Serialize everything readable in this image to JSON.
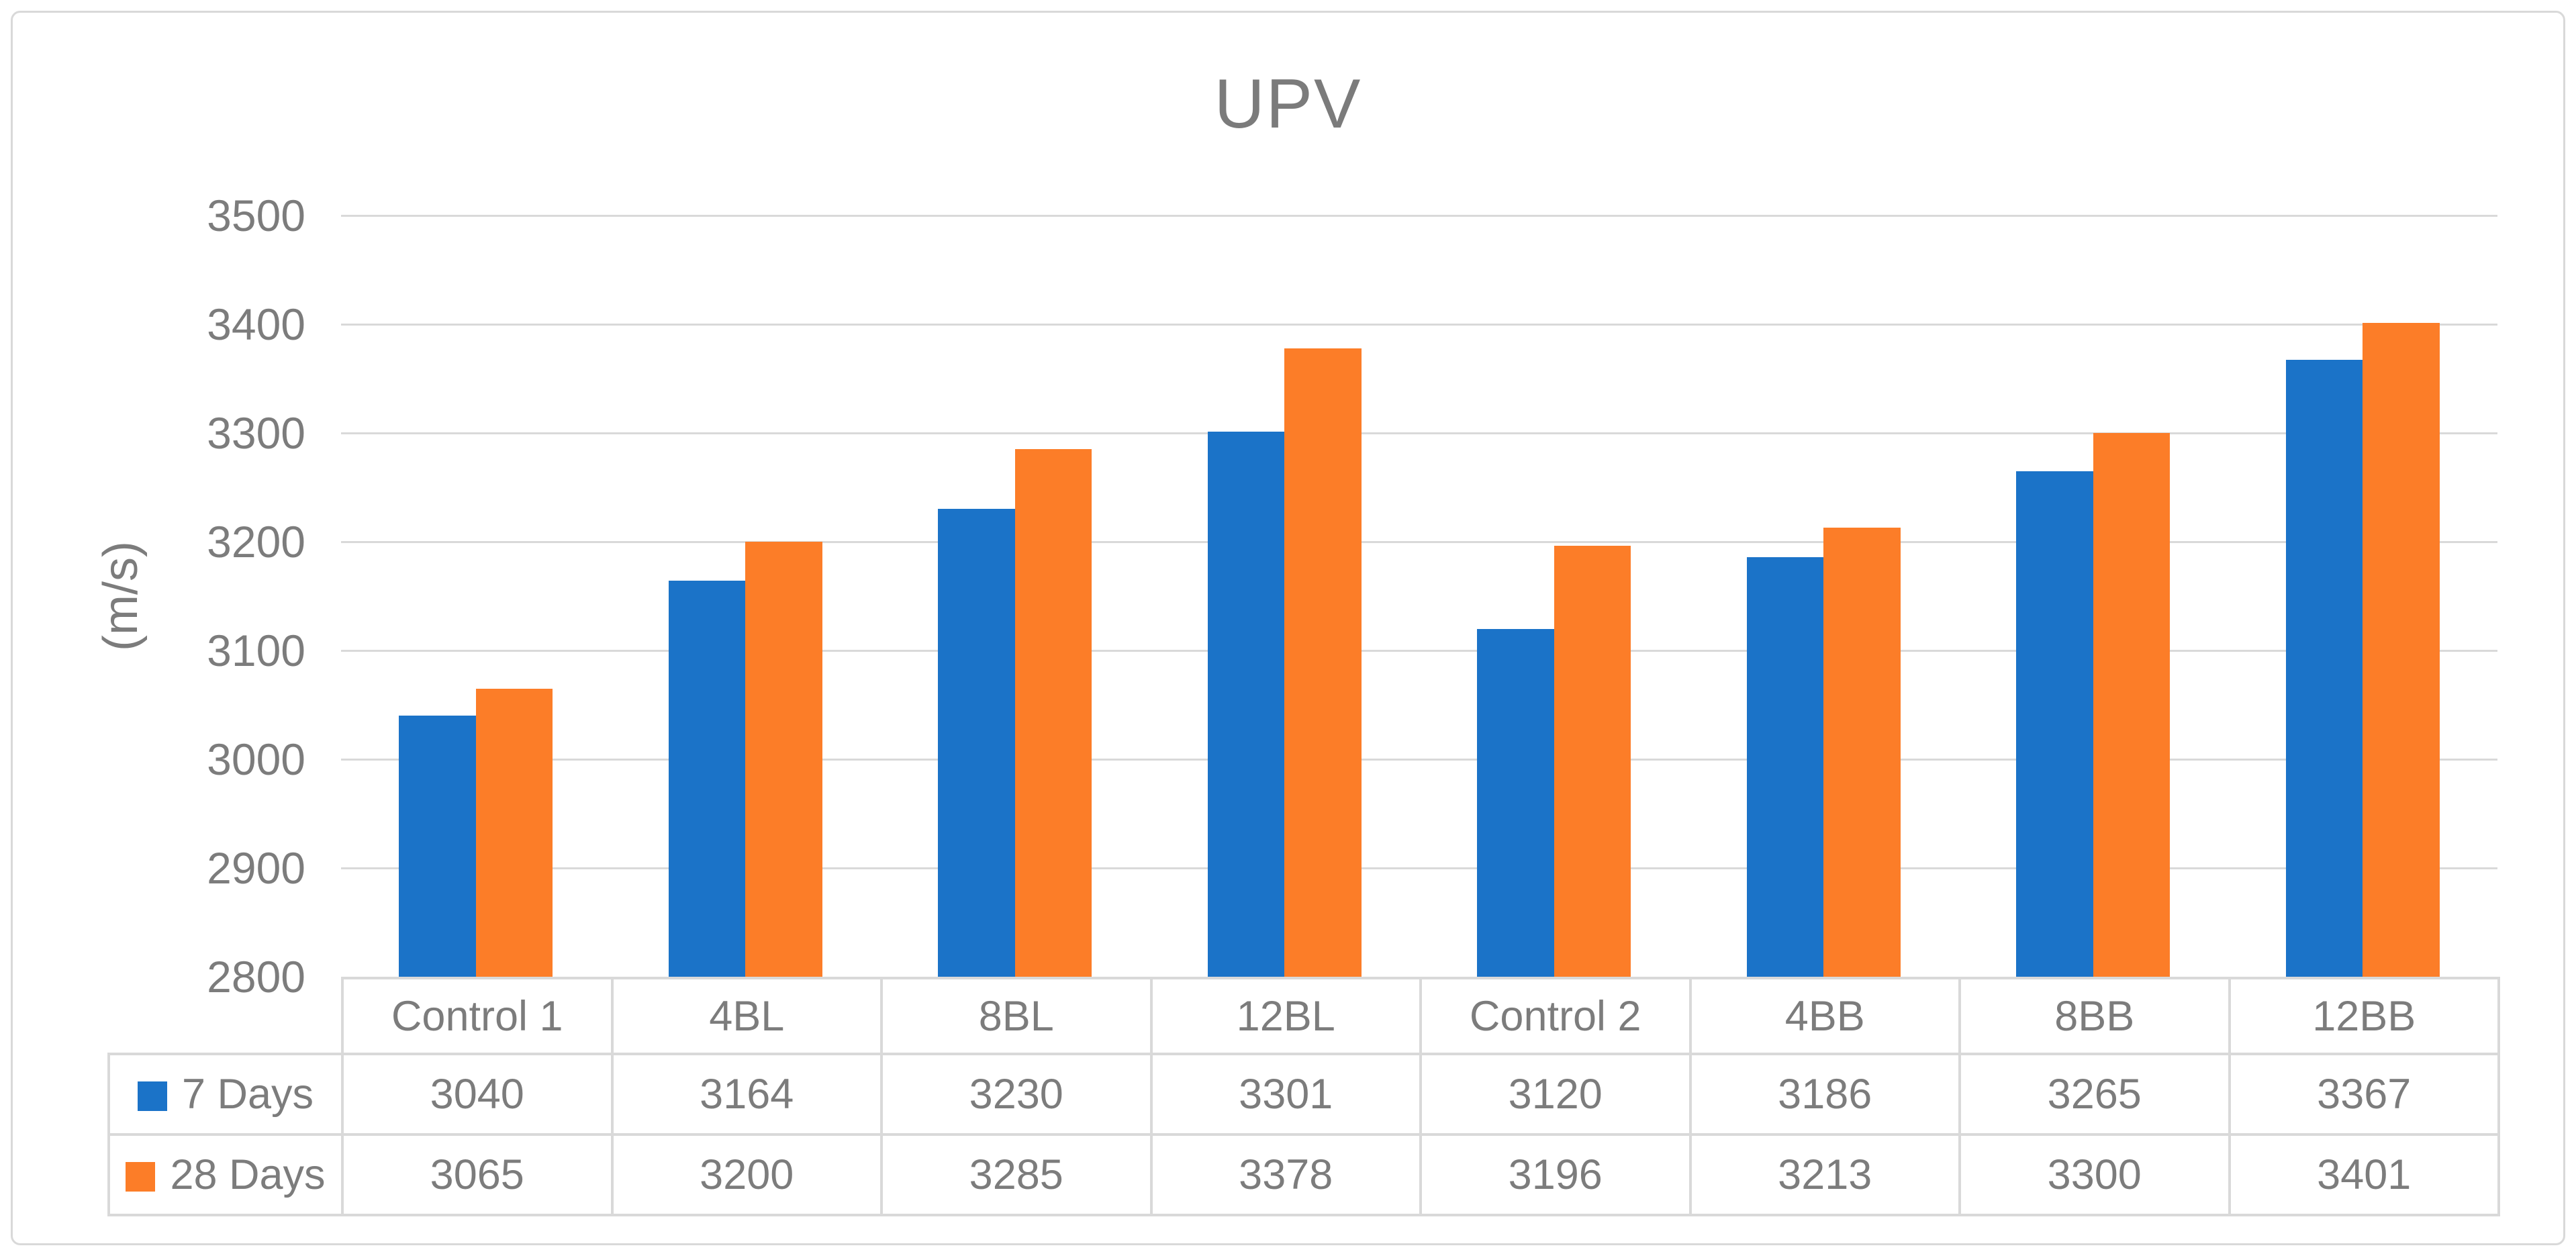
{
  "chart_data": {
    "type": "bar",
    "title": "UPV",
    "ylabel": "(m/s)",
    "categories": [
      "Control 1",
      "4BL",
      "8BL",
      "12BL",
      "Control 2",
      "4BB",
      "8BB",
      "12BB"
    ],
    "series": [
      {
        "name": "7 Days",
        "color": "#1B73C8",
        "values": [
          3040,
          3164,
          3230,
          3301,
          3120,
          3186,
          3265,
          3367
        ]
      },
      {
        "name": "28 Days",
        "color": "#FC7D28",
        "values": [
          3065,
          3200,
          3285,
          3378,
          3196,
          3213,
          3300,
          3401
        ]
      }
    ],
    "ylim": [
      2800,
      3500
    ],
    "ytick_step": 100,
    "yticks": [
      2800,
      2900,
      3000,
      3100,
      3200,
      3300,
      3400,
      3500
    ],
    "grid": true,
    "legend_position": "data-table-left",
    "data_table_shown": true
  },
  "colors": {
    "text": "#7C7C7C",
    "gridline": "#D9D9D9",
    "table_border": "#D9D9D9",
    "figure_border": "#D9D9D9",
    "background": "#FFFFFF",
    "series_7_days": "#1B73C8",
    "series_28_days": "#FC7D28"
  }
}
